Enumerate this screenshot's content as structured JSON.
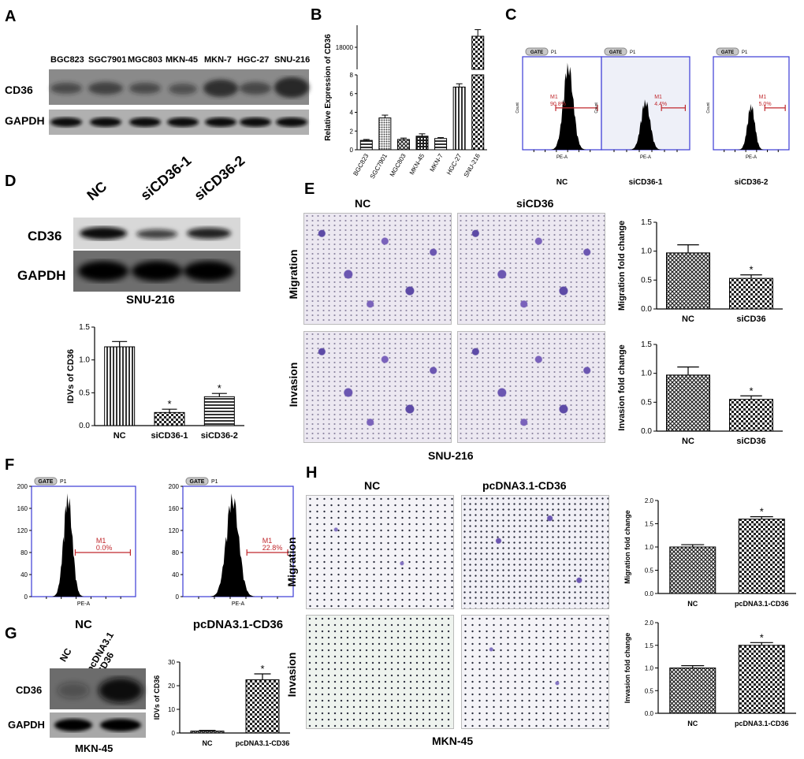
{
  "panels": {
    "A": "A",
    "B": "B",
    "C": "C",
    "D": "D",
    "E": "E",
    "F": "F",
    "G": "G",
    "H": "H"
  },
  "panel_a": {
    "lanes": [
      "BGC823",
      "SGC7901",
      "MGC803",
      "MKN-45",
      "MKN-7",
      "HGC-27",
      "SNU-216"
    ],
    "rows": [
      "CD36",
      "GAPDH"
    ]
  },
  "panel_c": {
    "plots": [
      {
        "gate": "GATE",
        "p": "P1",
        "marker": "M1",
        "percent": "90.8%",
        "caption": "NC",
        "xlabel": "PE-A",
        "ylabel": "Count"
      },
      {
        "gate": "GATE",
        "p": "P1",
        "marker": "M1",
        "percent": "4.4%",
        "caption": "siCD36-1",
        "xlabel": "PE-A",
        "ylabel": "Count"
      },
      {
        "gate": "GATE",
        "p": "P1",
        "marker": "M1",
        "percent": "5.0%",
        "caption": "siCD36-2",
        "xlabel": "PE-A",
        "ylabel": "Count"
      }
    ]
  },
  "panel_d": {
    "lanes": [
      "NC",
      "siCD36-1",
      "siCD36-2"
    ],
    "rows": [
      "CD36",
      "GAPDH"
    ],
    "cell_line": "SNU-216"
  },
  "panel_e": {
    "cols": [
      "NC",
      "siCD36"
    ],
    "rows": [
      "Migration",
      "Invasion"
    ],
    "cell_line": "SNU-216"
  },
  "panel_f": {
    "plots": [
      {
        "gate": "GATE",
        "p": "P1",
        "marker": "M1",
        "percent": "0.0%",
        "caption": "NC",
        "xlabel": "PE-A",
        "y_ticks": [
          "0",
          "40",
          "80",
          "120",
          "160",
          "200"
        ]
      },
      {
        "gate": "GATE",
        "p": "P1",
        "marker": "M1",
        "percent": "22.8%",
        "caption": "pcDNA3.1-CD36",
        "xlabel": "PE-A",
        "y_ticks": [
          "0",
          "40",
          "80",
          "120",
          "160",
          "200"
        ]
      }
    ]
  },
  "panel_g": {
    "lanes": [
      "NC",
      "pcDNA3.1\n-CD36"
    ],
    "rows": [
      "CD36",
      "GAPDH"
    ],
    "cell_line": "MKN-45"
  },
  "panel_h": {
    "cols": [
      "NC",
      "pcDNA3.1-CD36"
    ],
    "rows": [
      "Migration",
      "Invasion"
    ],
    "cell_line": "MKN-45"
  },
  "chart_data": [
    {
      "id": "B",
      "type": "bar",
      "title": "",
      "categories": [
        "BGC823",
        "SGC7901",
        "MGC803",
        "MKN-45",
        "MKN-7",
        "HGC-27",
        "SNU-216"
      ],
      "values": [
        1.0,
        3.4,
        1.1,
        1.45,
        1.2,
        6.7,
        18500
      ],
      "errors": [
        0.1,
        0.3,
        0.15,
        0.25,
        0.1,
        0.35,
        300
      ],
      "ylabel": "Relative Expression of CD36",
      "lower_axis": {
        "ylim": [
          0,
          8
        ],
        "ticks": [
          "0",
          "2",
          "4",
          "6",
          "8"
        ]
      },
      "upper_axis": {
        "ticks": [
          "18000"
        ]
      },
      "broken_axis": true
    },
    {
      "id": "D",
      "type": "bar",
      "categories": [
        "NC",
        "siCD36-1",
        "siCD36-2"
      ],
      "values": [
        1.2,
        0.2,
        0.44
      ],
      "errors": [
        0.08,
        0.05,
        0.05
      ],
      "significance": [
        "",
        "*",
        "*"
      ],
      "ylabel": "IDVs of CD36",
      "ylim": [
        0,
        1.5
      ],
      "ticks": [
        "0.0",
        "0.5",
        "1.0",
        "1.5"
      ]
    },
    {
      "id": "E-migration",
      "type": "bar",
      "categories": [
        "NC",
        "siCD36"
      ],
      "values": [
        0.97,
        0.53
      ],
      "errors": [
        0.14,
        0.06
      ],
      "significance": [
        "",
        "*"
      ],
      "ylabel": "Migration fold change",
      "ylim": [
        0,
        1.5
      ],
      "ticks": [
        "0.0",
        "0.5",
        "1.0",
        "1.5"
      ]
    },
    {
      "id": "E-invasion",
      "type": "bar",
      "categories": [
        "NC",
        "siCD36"
      ],
      "values": [
        0.97,
        0.55
      ],
      "errors": [
        0.14,
        0.06
      ],
      "significance": [
        "",
        "*"
      ],
      "ylabel": "Invasion fold change",
      "ylim": [
        0,
        1.5
      ],
      "ticks": [
        "0.0",
        "0.5",
        "1.0",
        "1.5"
      ]
    },
    {
      "id": "G",
      "type": "bar",
      "categories": [
        "NC",
        "pcDNA3.1-CD36"
      ],
      "values": [
        0.8,
        22.5
      ],
      "errors": [
        0.3,
        2.5
      ],
      "significance": [
        "",
        "*"
      ],
      "ylabel": "IDVs of CD36",
      "ylim": [
        0,
        30
      ],
      "ticks": [
        "0",
        "10",
        "20",
        "30"
      ]
    },
    {
      "id": "H-migration",
      "type": "bar",
      "categories": [
        "NC",
        "pcDNA3.1-CD36"
      ],
      "values": [
        1.0,
        1.6
      ],
      "errors": [
        0.05,
        0.05
      ],
      "significance": [
        "",
        "*"
      ],
      "ylabel": "Migration fold change",
      "ylim": [
        0,
        2.0
      ],
      "ticks": [
        "0.0",
        "0.5",
        "1.0",
        "1.5",
        "2.0"
      ]
    },
    {
      "id": "H-invasion",
      "type": "bar",
      "categories": [
        "NC",
        "pcDNA3.1-CD36"
      ],
      "values": [
        1.0,
        1.5
      ],
      "errors": [
        0.05,
        0.06
      ],
      "significance": [
        "",
        "*"
      ],
      "ylabel": "Invasion fold change",
      "ylim": [
        0,
        2.0
      ],
      "ticks": [
        "0.0",
        "0.5",
        "1.0",
        "1.5",
        "2.0"
      ]
    }
  ]
}
